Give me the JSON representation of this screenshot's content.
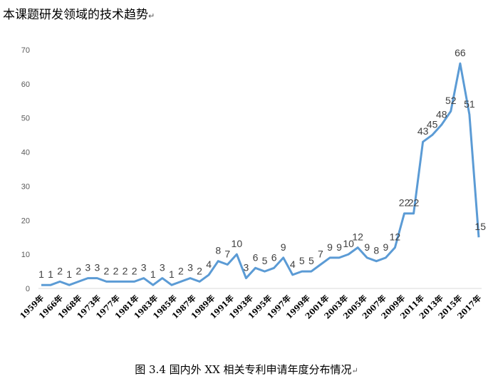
{
  "heading": "本课题研发领域的技术趋势",
  "paragraph_mark": "↵",
  "caption": "图  3.4 国内外 XX 相关专利申请年度分布情况",
  "chart_data": {
    "type": "line",
    "title": "",
    "xlabel": "",
    "ylabel": "",
    "ylim": [
      0,
      70
    ],
    "yticks": [
      0,
      10,
      20,
      30,
      40,
      50,
      60,
      70
    ],
    "grid": false,
    "legend": "none",
    "line_color": "#5B9BD5",
    "x_tick_labels": [
      "1959年",
      "1966年",
      "1968年",
      "1973年",
      "1977年",
      "1981年",
      "1983年",
      "1985年",
      "1987年",
      "1989年",
      "1991年",
      "1993年",
      "1995年",
      "1997年",
      "1999年",
      "2001年",
      "2003年",
      "2005年",
      "2007年",
      "2009年",
      "2011年",
      "2013年",
      "2015年",
      "2017年"
    ],
    "series": [
      {
        "values": [
          1,
          1,
          2,
          1,
          2,
          3,
          3,
          2,
          2,
          2,
          2,
          3,
          1,
          3,
          1,
          2,
          3,
          2,
          4,
          8,
          7,
          10,
          3,
          6,
          5,
          6,
          9,
          4,
          5,
          5,
          7,
          9,
          9,
          10,
          12,
          9,
          8,
          9,
          12,
          22,
          22,
          43,
          45,
          48,
          52,
          66,
          51,
          15
        ]
      }
    ]
  }
}
